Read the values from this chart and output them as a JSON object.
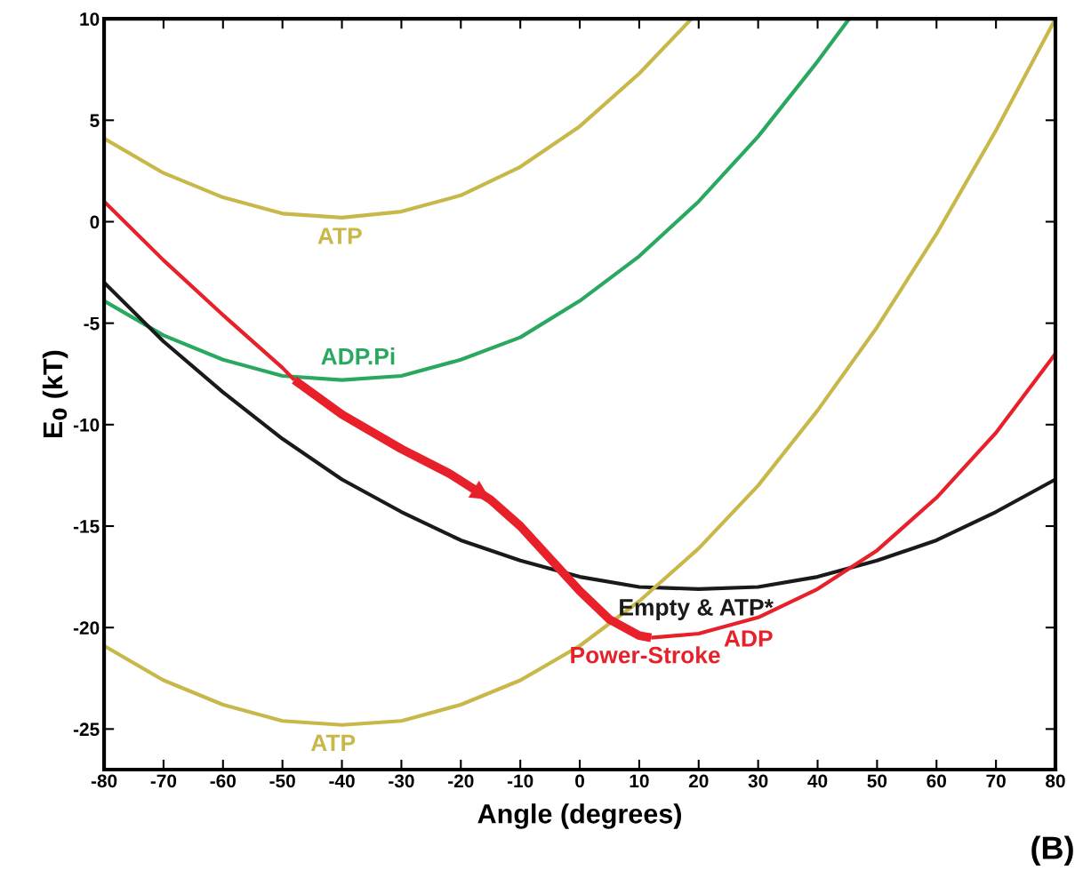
{
  "chart_data": {
    "type": "line",
    "xlabel": "Angle (degrees)",
    "ylabel": "E$_{0}$ (kT)",
    "xlim": [
      -80,
      80
    ],
    "ylim": [
      -27,
      10
    ],
    "xticks": [
      -80,
      -70,
      -60,
      -50,
      -40,
      -30,
      -20,
      -10,
      0,
      10,
      20,
      30,
      40,
      50,
      60,
      70,
      80
    ],
    "yticks": [
      -25,
      -20,
      -15,
      -10,
      -5,
      0,
      5,
      10
    ],
    "grid": false,
    "legend": false,
    "marker": "none",
    "line_style": "solid",
    "series": [
      {
        "name": "ATP",
        "color": "#c8b84a",
        "x": [
          -80,
          -70,
          -60,
          -50,
          -40,
          -30,
          -20,
          -10,
          0,
          10,
          18.8
        ],
        "values": [
          4.1,
          2.4,
          1.2,
          0.4,
          0.2,
          0.5,
          1.3,
          2.7,
          4.7,
          7.3,
          10
        ]
      },
      {
        "name": "ADP.Pi",
        "color": "#2aa860",
        "x": [
          -80,
          -70,
          -60,
          -50,
          -40,
          -30,
          -20,
          -10,
          0,
          10,
          20,
          30,
          40,
          45.3
        ],
        "values": [
          -3.9,
          -5.6,
          -6.8,
          -7.6,
          -7.8,
          -7.6,
          -6.8,
          -5.7,
          -3.9,
          -1.7,
          1.0,
          4.2,
          7.9,
          10
        ]
      },
      {
        "name": "Empty & ATP*",
        "color": "#1a1a1a",
        "x": [
          -80,
          -70,
          -60,
          -50,
          -40,
          -30,
          -20,
          -10,
          0,
          10,
          20,
          30,
          40,
          50,
          60,
          70,
          80
        ],
        "values": [
          -3.0,
          -5.9,
          -8.4,
          -10.7,
          -12.7,
          -14.3,
          -15.7,
          -16.7,
          -17.5,
          -18.0,
          -18.1,
          -18.0,
          -17.5,
          -16.7,
          -15.7,
          -14.3,
          -12.7
        ]
      },
      {
        "color": "#e8202a",
        "x": [
          -80,
          -70,
          -60,
          -50,
          -48
        ],
        "values": [
          1.0,
          -1.9,
          -4.6,
          -7.2,
          -7.8
        ]
      },
      {
        "name": "Power-Stroke",
        "color": "#e8202a",
        "x": [
          -48,
          -40,
          -30,
          -22,
          -15,
          -10,
          -5,
          0,
          5,
          10,
          12
        ],
        "values": [
          -7.8,
          -9.5,
          -11.2,
          -12.4,
          -13.7,
          -15.0,
          -16.6,
          -18.2,
          -19.6,
          -20.4,
          -20.5
        ]
      },
      {
        "name": "ADP",
        "color": "#e8202a",
        "x": [
          12,
          20,
          30,
          40,
          50,
          60,
          70,
          80
        ],
        "values": [
          -20.5,
          -20.3,
          -19.5,
          -18.1,
          -16.2,
          -13.6,
          -10.4,
          -6.5
        ]
      },
      {
        "name": "ATP",
        "color": "#c8b84a",
        "x": [
          -80,
          -70,
          -60,
          -50,
          -40,
          -30,
          -20,
          -10,
          0,
          10,
          20,
          30,
          40,
          50,
          60,
          70,
          80
        ],
        "values": [
          -20.9,
          -22.6,
          -23.8,
          -24.6,
          -24.8,
          -24.6,
          -23.8,
          -22.6,
          -20.9,
          -18.7,
          -16.1,
          -13.0,
          -9.3,
          -5.2,
          -0.6,
          4.5,
          10.0
        ]
      }
    ],
    "annotations": [
      "(B)"
    ]
  }
}
